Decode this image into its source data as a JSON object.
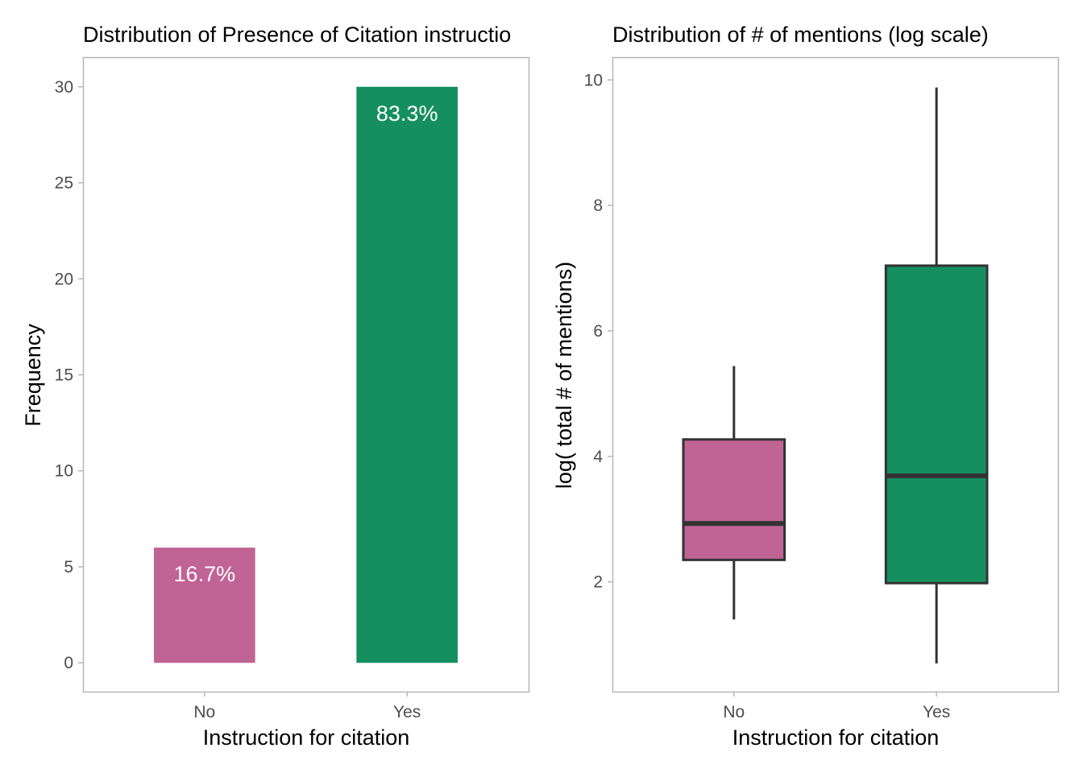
{
  "chart_data": [
    {
      "type": "bar",
      "title": "Distribution of Presence of Citation instructio",
      "xlabel": "Instruction for citation",
      "ylabel": "Frequency",
      "categories": [
        "No",
        "Yes"
      ],
      "values": [
        6,
        30
      ],
      "labels": [
        "16.7%",
        "83.3%"
      ],
      "colors": [
        "#c06395",
        "#168f60"
      ],
      "ylim": [
        -1.5,
        31.5
      ],
      "yticks": [
        "0",
        "5",
        "10",
        "15",
        "20",
        "25",
        "30"
      ],
      "grid": false,
      "legend": "none"
    },
    {
      "type": "box",
      "title": "Distribution of # of mentions (log scale)",
      "xlabel": "Instruction for citation",
      "ylabel": "log( total # of mentions)",
      "categories": [
        "No",
        "Yes"
      ],
      "boxes": [
        {
          "category": "No",
          "whisker_low": 1.4,
          "q1": 2.35,
          "median": 2.93,
          "q3": 4.27,
          "whisker_high": 5.44
        },
        {
          "category": "Yes",
          "whisker_low": 0.7,
          "q1": 1.98,
          "median": 3.69,
          "q3": 7.04,
          "whisker_high": 9.88
        }
      ],
      "colors": [
        "#c06395",
        "#168f60"
      ],
      "ylim": [
        0.25,
        10.35
      ],
      "yticks": [
        "2",
        "4",
        "6",
        "8",
        "10"
      ],
      "grid": false,
      "legend": "none"
    }
  ]
}
